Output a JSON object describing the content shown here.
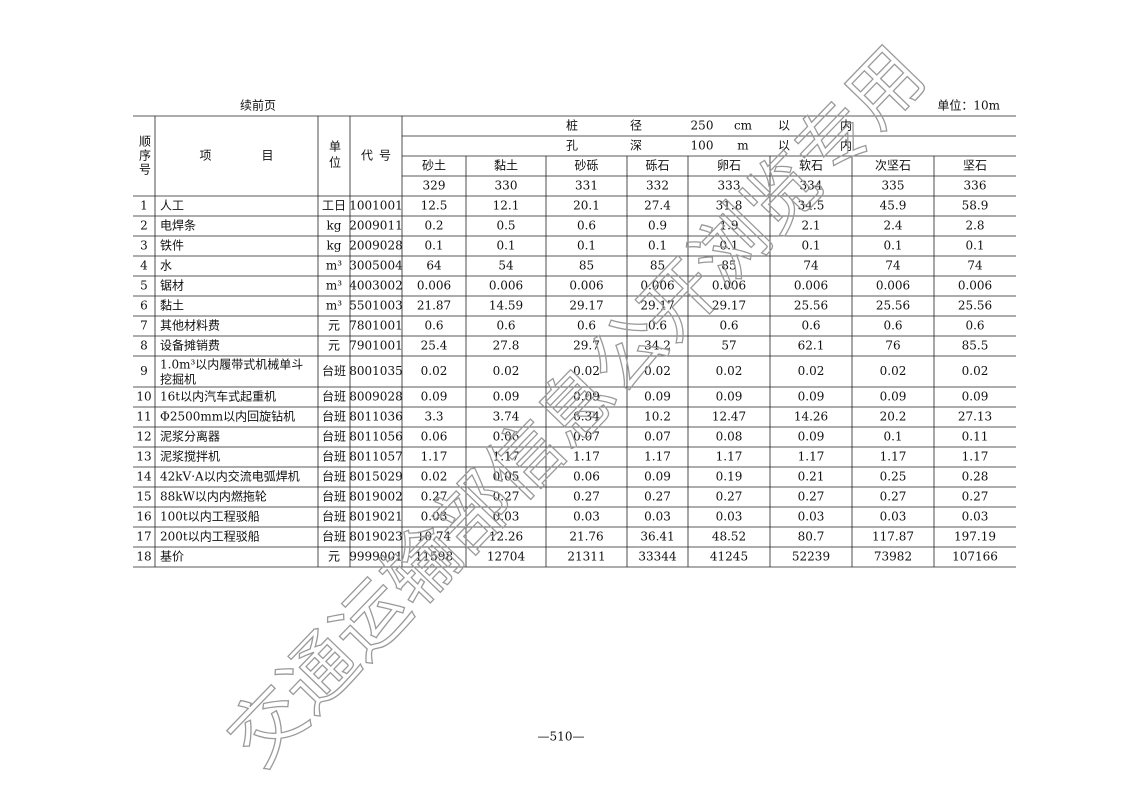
{
  "header": {
    "continued": "续前页",
    "unit": "单位：10m"
  },
  "table": {
    "head": {
      "seq": "顺序号",
      "item": "项目",
      "unit": "单位",
      "code": "代号",
      "span1": [
        "桩",
        "径",
        "250",
        "cm",
        "以",
        "内"
      ],
      "span2": [
        "孔",
        "深",
        "100",
        "m",
        "以",
        "内"
      ],
      "columns": [
        "砂土",
        "黏土",
        "砂砾",
        "砾石",
        "卵石",
        "软石",
        "次坚石",
        "坚石"
      ],
      "column_codes": [
        "329",
        "330",
        "331",
        "332",
        "333",
        "334",
        "335",
        "336"
      ]
    },
    "rows": [
      [
        "1",
        "人工",
        "工日",
        "1001001",
        "12.5",
        "12.1",
        "20.1",
        "27.4",
        "31.8",
        "34.5",
        "45.9",
        "58.9"
      ],
      [
        "2",
        "电焊条",
        "kg",
        "2009011",
        "0.2",
        "0.5",
        "0.6",
        "0.9",
        "1.9",
        "2.1",
        "2.4",
        "2.8"
      ],
      [
        "3",
        "铁件",
        "kg",
        "2009028",
        "0.1",
        "0.1",
        "0.1",
        "0.1",
        "0.1",
        "0.1",
        "0.1",
        "0.1"
      ],
      [
        "4",
        "水",
        "m³",
        "3005004",
        "64",
        "54",
        "85",
        "85",
        "85",
        "74",
        "74",
        "74"
      ],
      [
        "5",
        "锯材",
        "m³",
        "4003002",
        "0.006",
        "0.006",
        "0.006",
        "0.006",
        "0.006",
        "0.006",
        "0.006",
        "0.006"
      ],
      [
        "6",
        "黏土",
        "m³",
        "5501003",
        "21.87",
        "14.59",
        "29.17",
        "29.17",
        "29.17",
        "25.56",
        "25.56",
        "25.56"
      ],
      [
        "7",
        "其他材料费",
        "元",
        "7801001",
        "0.6",
        "0.6",
        "0.6",
        "0.6",
        "0.6",
        "0.6",
        "0.6",
        "0.6"
      ],
      [
        "8",
        "设备摊销费",
        "元",
        "7901001",
        "25.4",
        "27.8",
        "29.7",
        "34.2",
        "57",
        "62.1",
        "76",
        "85.5"
      ],
      [
        "9",
        "1.0m³以内履带式机械单斗挖掘机",
        "台班",
        "8001035",
        "0.02",
        "0.02",
        "0.02",
        "0.02",
        "0.02",
        "0.02",
        "0.02",
        "0.02"
      ],
      [
        "10",
        "16t以内汽车式起重机",
        "台班",
        "8009028",
        "0.09",
        "0.09",
        "0.09",
        "0.09",
        "0.09",
        "0.09",
        "0.09",
        "0.09"
      ],
      [
        "11",
        "Φ2500mm以内回旋钻机",
        "台班",
        "8011036",
        "3.3",
        "3.74",
        "6.34",
        "10.2",
        "12.47",
        "14.26",
        "20.2",
        "27.13"
      ],
      [
        "12",
        "泥浆分离器",
        "台班",
        "8011056",
        "0.06",
        "0.06",
        "0.07",
        "0.07",
        "0.08",
        "0.09",
        "0.1",
        "0.11"
      ],
      [
        "13",
        "泥浆搅拌机",
        "台班",
        "8011057",
        "1.17",
        "1.17",
        "1.17",
        "1.17",
        "1.17",
        "1.17",
        "1.17",
        "1.17"
      ],
      [
        "14",
        "42kV·A以内交流电弧焊机",
        "台班",
        "8015029",
        "0.02",
        "0.05",
        "0.06",
        "0.09",
        "0.19",
        "0.21",
        "0.25",
        "0.28"
      ],
      [
        "15",
        "88kW以内内燃拖轮",
        "台班",
        "8019002",
        "0.27",
        "0.27",
        "0.27",
        "0.27",
        "0.27",
        "0.27",
        "0.27",
        "0.27"
      ],
      [
        "16",
        "100t以内工程驳船",
        "台班",
        "8019021",
        "0.03",
        "0.03",
        "0.03",
        "0.03",
        "0.03",
        "0.03",
        "0.03",
        "0.03"
      ],
      [
        "17",
        "200t以内工程驳船",
        "台班",
        "8019023",
        "10.74",
        "12.26",
        "21.76",
        "36.41",
        "48.52",
        "80.7",
        "117.87",
        "197.19"
      ],
      [
        "18",
        "基价",
        "元",
        "9999001",
        "11598",
        "12704",
        "21311",
        "33344",
        "41245",
        "52239",
        "73982",
        "107166"
      ]
    ]
  },
  "footer": {
    "page": "—510—"
  },
  "watermark": "交通运输部信息公开浏览专用"
}
